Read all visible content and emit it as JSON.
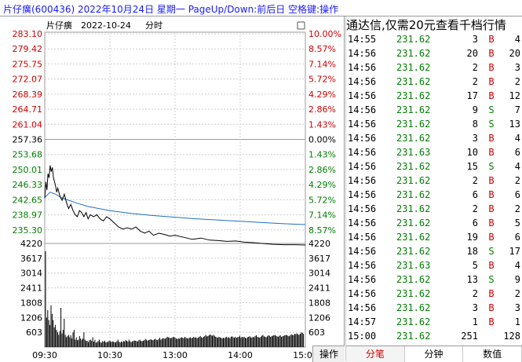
{
  "title_bar": {
    "text": "片仔癀(600436) 2022年10月24日 星期一 PageUp/Down:前后日 空格键:操作"
  },
  "chart": {
    "header_name": "片仔癀",
    "header_date": "2022-10-24",
    "header_label": "分时",
    "price_ticks": [
      "283.10",
      "279.42",
      "275.75",
      "272.07",
      "268.39",
      "264.71",
      "261.04",
      "257.36",
      "253.68",
      "250.01",
      "246.33",
      "242.65",
      "238.97",
      "235.30"
    ],
    "pct_ticks": [
      "10.00%",
      "8.57%",
      "7.14%",
      "5.72%",
      "4.29%",
      "2.86%",
      "1.43%",
      "0.00%",
      "1.43%",
      "2.86%",
      "4.29%",
      "5.72%",
      "7.14%",
      "8.57%"
    ],
    "volume_ticks": [
      "4220",
      "3617",
      "3014",
      "2411",
      "1808",
      "1206",
      "603"
    ],
    "time_labels": [
      "09:30",
      "10:30",
      "13:00",
      "14:00",
      "15:00"
    ],
    "colors": {
      "up": "#d00000",
      "down": "#008000",
      "flat": "#000000",
      "avg": "#1f6fc0",
      "price": "#000000"
    }
  },
  "chart_data": {
    "type": "line",
    "x_label_ticks": [
      "09:30",
      "10:30",
      "13:00",
      "14:00",
      "15:00"
    ],
    "ylim": [
      231.62,
      283.1
    ],
    "prev_close": 257.36,
    "series": [
      {
        "x_min": [
          0,
          1,
          2,
          3,
          4,
          5,
          6,
          7,
          8,
          9,
          10,
          11,
          12,
          14,
          16,
          18,
          20,
          22,
          24,
          26,
          28,
          30,
          32,
          34,
          36,
          38,
          40,
          42,
          45,
          48,
          51,
          54,
          57,
          60,
          64,
          68,
          72,
          76,
          80,
          84,
          88,
          92,
          96,
          100,
          105,
          110,
          115,
          120,
          128,
          136,
          144,
          152,
          160,
          168,
          176,
          184,
          192,
          200,
          210,
          220,
          230,
          240
        ],
        "values": [
          243.0,
          247.0,
          245.0,
          249.0,
          248.0,
          251.0,
          249.5,
          250.5,
          248.0,
          247.0,
          246.0,
          244.5,
          245.5,
          243.5,
          242.5,
          244.0,
          242.0,
          240.5,
          241.5,
          240.0,
          239.0,
          238.5,
          240.0,
          239.5,
          238.5,
          239.5,
          238.0,
          239.0,
          238.5,
          239.0,
          238.0,
          237.5,
          238.5,
          238.0,
          237.0,
          236.0,
          235.5,
          235.8,
          235.5,
          236.0,
          235.0,
          234.5,
          235.0,
          234.0,
          234.5,
          234.2,
          233.8,
          234.0,
          233.5,
          233.0,
          233.3,
          232.8,
          232.7,
          232.5,
          232.6,
          232.3,
          232.2,
          232.0,
          231.8,
          231.7,
          231.7,
          231.62
        ]
      },
      {
        "x_min": [
          0,
          5,
          10,
          15,
          20,
          30,
          40,
          60,
          80,
          100,
          120,
          140,
          160,
          180,
          200,
          220,
          240
        ],
        "values": [
          243.2,
          244.5,
          244.0,
          243.2,
          242.7,
          241.8,
          241.0,
          240.0,
          239.3,
          238.8,
          238.4,
          238.0,
          237.7,
          237.4,
          237.1,
          236.8,
          236.6
        ]
      }
    ],
    "volume_max": 4220,
    "volume_bars": [
      3900,
      1200,
      1500,
      1100,
      900,
      1700,
      1350,
      1100,
      800,
      900,
      700,
      600,
      500,
      650,
      1600,
      550,
      700,
      1150,
      500,
      400,
      450,
      500,
      400,
      480,
      350,
      600,
      700,
      300,
      400,
      280,
      300,
      450,
      350,
      300,
      350,
      600,
      300,
      250,
      260,
      200,
      280,
      300,
      250,
      400,
      220,
      300,
      180,
      200,
      250,
      300,
      200,
      180,
      250,
      220,
      260,
      190,
      200,
      220,
      260,
      240,
      210,
      230,
      220,
      190,
      200,
      240,
      300,
      220,
      180,
      230,
      200,
      250,
      230,
      280,
      260,
      220,
      300,
      240,
      200,
      230,
      250,
      270,
      260,
      240,
      230,
      280,
      300,
      250,
      240,
      260,
      280,
      330,
      300,
      260,
      280,
      300,
      320,
      290,
      280,
      310,
      340,
      300,
      280,
      320,
      380,
      300,
      330,
      360,
      350,
      340,
      380,
      420,
      400,
      380,
      360,
      380,
      400,
      420,
      380,
      350,
      330,
      360,
      340,
      380,
      400,
      380,
      360,
      420,
      380,
      360,
      350,
      380,
      400,
      360,
      380,
      420,
      380,
      400,
      360,
      380,
      420,
      450,
      400,
      380,
      420,
      450,
      500,
      430,
      450,
      480,
      520,
      480,
      460,
      500,
      460,
      420,
      400,
      380,
      420,
      400,
      380,
      350,
      380,
      360,
      400,
      420,
      380,
      400,
      360,
      420,
      440,
      400,
      380,
      420,
      380,
      400,
      420,
      460,
      380,
      420,
      400,
      420,
      380,
      360,
      400,
      420,
      440,
      400,
      380,
      420,
      400,
      450,
      480,
      420,
      400,
      380,
      420,
      460,
      500,
      440,
      420,
      400,
      440,
      480,
      460,
      420,
      440,
      460,
      480,
      500,
      460,
      440,
      420,
      460,
      480,
      420,
      440,
      460,
      480,
      500,
      480,
      460,
      440,
      480,
      520,
      500,
      480,
      540,
      520,
      560,
      520,
      500,
      540,
      600,
      580,
      540
    ]
  },
  "right_panel": {
    "title": "通达信,仅需20元查看千档行情",
    "ticks": [
      {
        "time": "14:55",
        "price": "231.62",
        "vol": "3",
        "bs": "B",
        "cnt": "4"
      },
      {
        "time": "14:56",
        "price": "231.62",
        "vol": "20",
        "bs": "B",
        "cnt": "20"
      },
      {
        "time": "14:56",
        "price": "231.62",
        "vol": "2",
        "bs": "B",
        "cnt": "3"
      },
      {
        "time": "14:56",
        "price": "231.62",
        "vol": "2",
        "bs": "B",
        "cnt": "2"
      },
      {
        "time": "14:56",
        "price": "231.62",
        "vol": "17",
        "bs": "B",
        "cnt": "12"
      },
      {
        "time": "14:56",
        "price": "231.62",
        "vol": "9",
        "bs": "S",
        "cnt": "7"
      },
      {
        "time": "14:56",
        "price": "231.62",
        "vol": "8",
        "bs": "S",
        "cnt": "13"
      },
      {
        "time": "14:56",
        "price": "231.62",
        "vol": "3",
        "bs": "B",
        "cnt": "4"
      },
      {
        "time": "14:56",
        "price": "231.63",
        "vol": "10",
        "bs": "B",
        "cnt": "6"
      },
      {
        "time": "14:56",
        "price": "231.62",
        "vol": "15",
        "bs": "S",
        "cnt": "4"
      },
      {
        "time": "14:56",
        "price": "231.62",
        "vol": "2",
        "bs": "B",
        "cnt": "2"
      },
      {
        "time": "14:56",
        "price": "231.62",
        "vol": "6",
        "bs": "B",
        "cnt": "6"
      },
      {
        "time": "14:56",
        "price": "231.62",
        "vol": "2",
        "bs": "B",
        "cnt": "2"
      },
      {
        "time": "14:56",
        "price": "231.62",
        "vol": "6",
        "bs": "B",
        "cnt": "5"
      },
      {
        "time": "14:56",
        "price": "231.62",
        "vol": "19",
        "bs": "B",
        "cnt": "6"
      },
      {
        "time": "14:56",
        "price": "231.62",
        "vol": "18",
        "bs": "S",
        "cnt": "17"
      },
      {
        "time": "14:56",
        "price": "231.63",
        "vol": "5",
        "bs": "B",
        "cnt": "4"
      },
      {
        "time": "14:56",
        "price": "231.62",
        "vol": "13",
        "bs": "S",
        "cnt": "9"
      },
      {
        "time": "14:56",
        "price": "231.62",
        "vol": "2",
        "bs": "B",
        "cnt": "2"
      },
      {
        "time": "14:56",
        "price": "231.62",
        "vol": "3",
        "bs": "B",
        "cnt": "3"
      },
      {
        "time": "14:57",
        "price": "231.62",
        "vol": "1",
        "bs": "B",
        "cnt": "1"
      },
      {
        "time": "15:00",
        "price": "231.62",
        "vol": "251",
        "bs": "",
        "cnt": "128"
      }
    ],
    "tabs": [
      "分笔",
      "分钟",
      "数值"
    ],
    "op_button": "操作"
  }
}
